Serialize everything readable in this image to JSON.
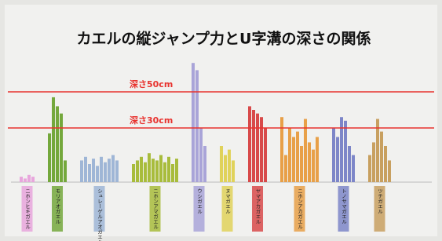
{
  "chart_data": {
    "type": "bar",
    "title": "カエルの縦ジャンプ力とU字溝の深さの関係",
    "ylim": [
      0,
      90
    ],
    "reference_lines": [
      {
        "label": "深さ50cm",
        "value": 50,
        "color": "#e8322e"
      },
      {
        "label": "深さ30cm",
        "value": 30,
        "color": "#e8322e"
      }
    ],
    "series": [
      {
        "name": "ニホンヒキガエル",
        "color": "#e8a6dc",
        "values": [
          3,
          2,
          4,
          3
        ]
      },
      {
        "name": "モリアオガエル",
        "color": "#74a83c",
        "values": [
          27,
          47,
          42,
          38,
          12
        ]
      },
      {
        "name": "シュレーゲルアオガエル",
        "color": "#9fb6d6",
        "values": [
          12,
          14,
          10,
          13,
          9,
          14,
          11,
          13,
          15,
          12
        ]
      },
      {
        "name": "ニホンアマガエル",
        "color": "#a8bc3c",
        "values": [
          10,
          12,
          14,
          11,
          16,
          13,
          12,
          15,
          11,
          14,
          10,
          13
        ]
      },
      {
        "name": "ウシガエル",
        "color": "#a9a4d8",
        "values": [
          66,
          62,
          30,
          20
        ]
      },
      {
        "name": "ヌマガエル",
        "color": "#e0d25a",
        "values": [
          20,
          15,
          18,
          12
        ]
      },
      {
        "name": "ヤマアカガエル",
        "color": "#d84a4a",
        "values": [
          42,
          40,
          38,
          36,
          30
        ]
      },
      {
        "name": "ニホンアカガエル",
        "color": "#e8a048",
        "values": [
          36,
          15,
          30,
          25,
          28,
          20,
          35,
          22,
          18,
          25
        ]
      },
      {
        "name": "トノサマガエル",
        "color": "#7d86c8",
        "values": [
          30,
          25,
          36,
          34,
          20,
          15
        ]
      },
      {
        "name": "ツチガエル",
        "color": "#c8a060",
        "values": [
          15,
          22,
          35,
          28,
          20,
          12
        ]
      }
    ]
  }
}
